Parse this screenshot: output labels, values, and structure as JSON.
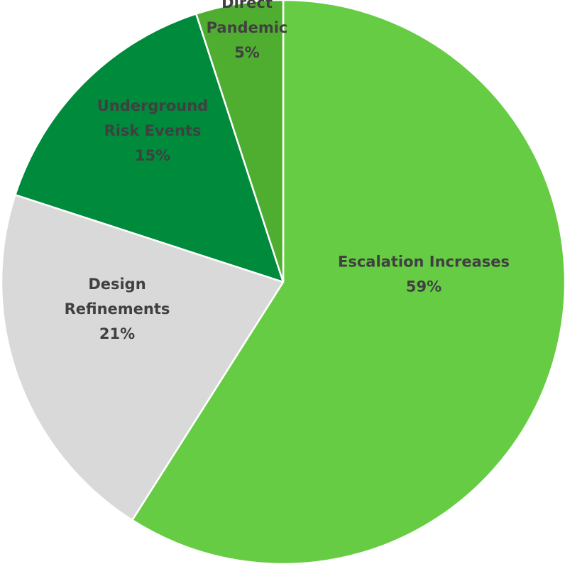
{
  "chart_data": {
    "type": "pie",
    "title": "",
    "start_direction": "12 o'clock",
    "direction": "clockwise",
    "slices": [
      {
        "label_lines": [
          "Escalation Increases"
        ],
        "value": 59,
        "value_label": "59%",
        "color": "#66cc44"
      },
      {
        "label_lines": [
          "Design",
          "Refinements"
        ],
        "value": 21,
        "value_label": "21%",
        "color": "#d9d9d9"
      },
      {
        "label_lines": [
          "Underground",
          "Risk Events"
        ],
        "value": 15,
        "value_label": "15%",
        "color": "#008a3c"
      },
      {
        "label_lines": [
          "Direct",
          "Pandemic"
        ],
        "value": 5,
        "value_label": "5%",
        "color": "#4fae2f"
      }
    ]
  }
}
